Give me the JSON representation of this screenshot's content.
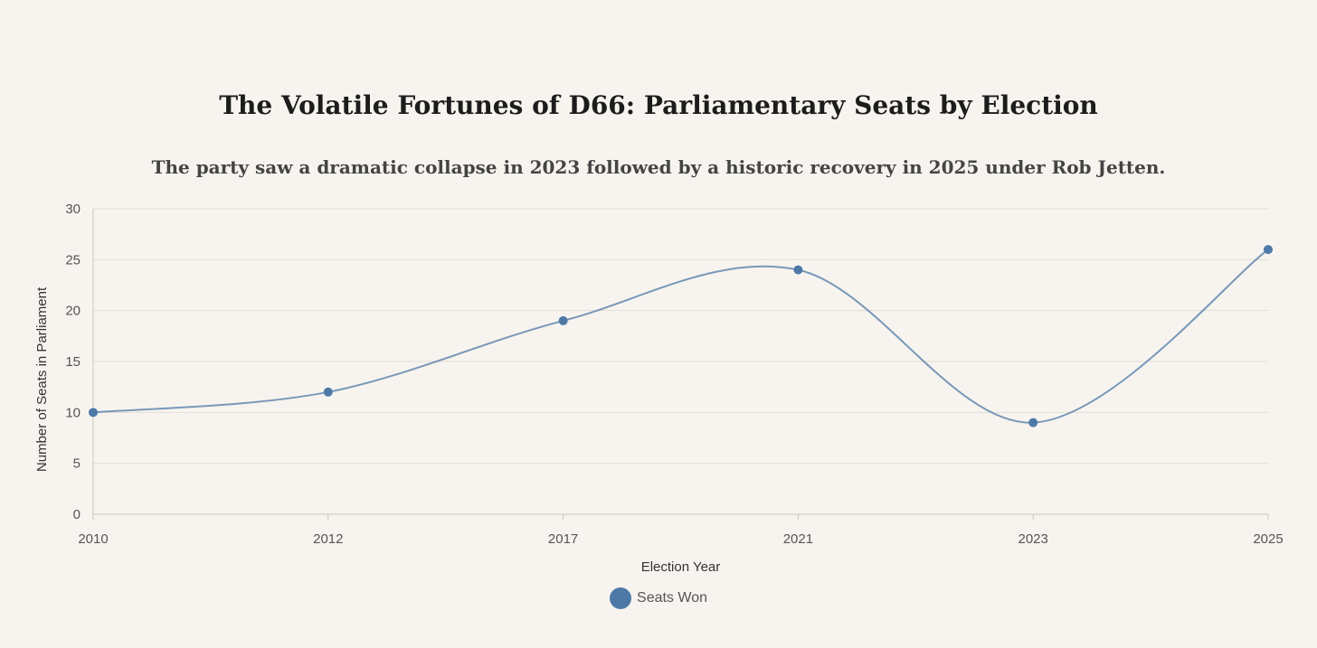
{
  "colors": {
    "series": "#4e79a7",
    "grid": "#e2ddd6",
    "axis": "#c9c4bc"
  },
  "chart_data": {
    "type": "line",
    "title": "The Volatile Fortunes of D66: Parliamentary Seats by Election",
    "subtitle": "The party saw a dramatic collapse in 2023 followed by a historic recovery in 2025 under Rob Jetten.",
    "xlabel": "Election Year",
    "ylabel": "Number of Seats in Parliament",
    "categories": [
      "2010",
      "2012",
      "2017",
      "2021",
      "2023",
      "2025"
    ],
    "ylim": [
      0,
      30
    ],
    "yticks": [
      0,
      5,
      10,
      15,
      20,
      25,
      30
    ],
    "grid": true,
    "legend_position": "bottom-center",
    "series": [
      {
        "name": "Seats Won",
        "values": [
          10,
          12,
          19,
          24,
          9,
          26
        ]
      }
    ]
  }
}
